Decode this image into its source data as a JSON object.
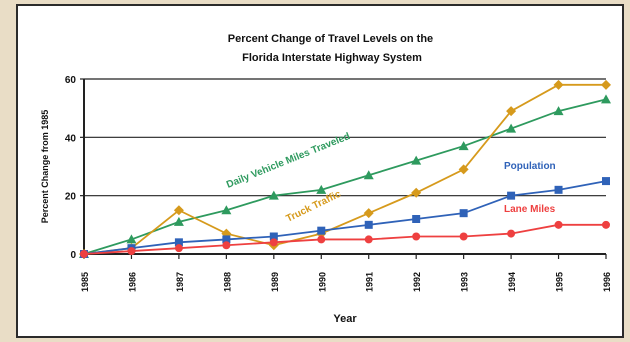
{
  "chart_data": {
    "type": "line",
    "title": "Percent Change of Travel Levels on the Florida Interstate Highway System",
    "xlabel": "Year",
    "ylabel": "Percent Change from 1985",
    "x": [
      "1985",
      "1986",
      "1987",
      "1988",
      "1989",
      "1990",
      "1991",
      "1992",
      "1993",
      "1994",
      "1995",
      "1996"
    ],
    "ylim": [
      0,
      60
    ],
    "yticks": [
      0,
      20,
      40,
      60
    ],
    "grid": true,
    "series": [
      {
        "name": "Daily Vehicle Miles Traveled",
        "color": "#2e9a5e",
        "marker": "triangle",
        "values": [
          0,
          5,
          11,
          15,
          20,
          22,
          27,
          32,
          37,
          43,
          49,
          53
        ]
      },
      {
        "name": "Truck Traffic",
        "color": "#d69a1c",
        "marker": "diamond",
        "values": [
          0,
          2,
          15,
          7,
          3,
          7,
          14,
          21,
          29,
          49,
          58,
          58
        ]
      },
      {
        "name": "Population",
        "color": "#2f62b8",
        "marker": "square",
        "values": [
          0,
          2,
          4,
          5,
          6,
          8,
          10,
          12,
          14,
          20,
          22,
          25
        ]
      },
      {
        "name": "Lane Miles",
        "color": "#ee4040",
        "marker": "circle",
        "values": [
          0,
          1,
          2,
          3,
          4,
          5,
          5,
          6,
          6,
          7,
          10,
          10
        ]
      }
    ]
  }
}
